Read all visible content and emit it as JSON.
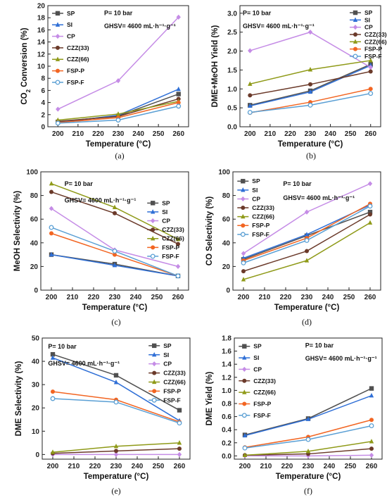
{
  "chart_data": [
    {
      "type": "line",
      "panel_label": "(a)",
      "xlabel": "Temperature (°C)",
      "ylabel_main": "CO",
      "ylabel_sub": "2",
      "ylabel_rest": " Conversion (%)",
      "x": [
        200,
        230,
        260
      ],
      "xlim": [
        195,
        265
      ],
      "xticks": [
        200,
        210,
        220,
        230,
        240,
        250,
        260
      ],
      "ylim": [
        0,
        20
      ],
      "yticks": [
        0,
        2,
        4,
        6,
        8,
        10,
        12,
        14,
        16,
        18,
        20
      ],
      "annotations": [
        {
          "text": "P= 10 bar"
        },
        {
          "text": "GHSV= 4600 mL·h⁻¹·g⁻¹"
        }
      ],
      "legend": "top-left",
      "series": [
        {
          "name": "SP",
          "values": [
            0.8,
            1.8,
            5.4
          ]
        },
        {
          "name": "SI",
          "values": [
            0.7,
            1.9,
            6.2
          ]
        },
        {
          "name": "CP",
          "values": [
            2.9,
            7.6,
            18.1
          ]
        },
        {
          "name": "CZZ(33)",
          "values": [
            0.9,
            1.7,
            4.6
          ]
        },
        {
          "name": "CZZ(66)",
          "values": [
            1.1,
            2.1,
            4.2
          ]
        },
        {
          "name": "FSP-P",
          "values": [
            0.7,
            1.5,
            4.0
          ]
        },
        {
          "name": "FSP-F",
          "values": [
            0.6,
            1.1,
            3.4
          ]
        }
      ]
    },
    {
      "type": "line",
      "panel_label": "(b)",
      "xlabel": "Temperature (°C)",
      "ylabel": "DME+MeOH Yield (%)",
      "x": [
        200,
        230,
        260
      ],
      "xlim": [
        195,
        265
      ],
      "xticks": [
        200,
        210,
        220,
        230,
        240,
        250,
        260
      ],
      "ylim": [
        0,
        3.2
      ],
      "yticks": [
        0.0,
        0.5,
        1.0,
        1.5,
        2.0,
        2.5,
        3.0
      ],
      "annotations": [
        {
          "text": "P= 10 bar"
        },
        {
          "text": "GHSV= 4600 mL·h⁻¹·g⁻¹"
        }
      ],
      "legend": "top-right",
      "series": [
        {
          "name": "SP",
          "values": [
            0.57,
            0.95,
            1.65
          ]
        },
        {
          "name": "SI",
          "values": [
            0.55,
            0.92,
            1.62
          ]
        },
        {
          "name": "CP",
          "values": [
            2.01,
            2.5,
            1.57
          ]
        },
        {
          "name": "CZZ(33)",
          "values": [
            0.83,
            1.12,
            1.46
          ]
        },
        {
          "name": "CZZ(66)",
          "values": [
            1.13,
            1.51,
            1.75
          ]
        },
        {
          "name": "FSP-P",
          "values": [
            0.37,
            0.65,
            1.0
          ]
        },
        {
          "name": "FSP-F",
          "values": [
            0.38,
            0.57,
            0.88
          ]
        }
      ]
    },
    {
      "type": "line",
      "panel_label": "(c)",
      "xlabel": "Temperature (°C)",
      "ylabel": "MeOH Selectivity (%)",
      "x": [
        200,
        230,
        260
      ],
      "xlim": [
        195,
        265
      ],
      "xticks": [
        200,
        210,
        220,
        230,
        240,
        250,
        260
      ],
      "ylim": [
        0,
        100
      ],
      "yticks": [
        0,
        20,
        40,
        60,
        80,
        100
      ],
      "annotations": [
        {
          "text": "P= 10 bar"
        },
        {
          "text": "GHSV= 4600 mL·h⁻¹·g⁻¹"
        }
      ],
      "legend": "right",
      "series": [
        {
          "name": "SP",
          "values": [
            30,
            22,
            12
          ]
        },
        {
          "name": "SI",
          "values": [
            30,
            21,
            12
          ]
        },
        {
          "name": "CP",
          "values": [
            69,
            34,
            20
          ]
        },
        {
          "name": "CZZ(33)",
          "values": [
            83,
            65,
            39
          ]
        },
        {
          "name": "CZZ(66)",
          "values": [
            90,
            70,
            43
          ]
        },
        {
          "name": "FSP-P",
          "values": [
            48,
            30,
            12
          ]
        },
        {
          "name": "FSP-F",
          "values": [
            53,
            33,
            12
          ]
        }
      ]
    },
    {
      "type": "line",
      "panel_label": "(d)",
      "xlabel": "Temperature (°C)",
      "ylabel": "CO Selectivity (%)",
      "x": [
        200,
        230,
        260
      ],
      "xlim": [
        195,
        265
      ],
      "xticks": [
        200,
        210,
        220,
        230,
        240,
        250,
        260
      ],
      "ylim": [
        0,
        100
      ],
      "yticks": [
        0,
        20,
        40,
        60,
        80,
        100
      ],
      "annotations": [
        {
          "text": "P= 10 bar"
        },
        {
          "text": "GHSV= 4600 mL·h⁻¹·g⁻¹"
        }
      ],
      "legend": "top-left",
      "series": [
        {
          "name": "SP",
          "values": [
            26,
            46,
            66
          ]
        },
        {
          "name": "SI",
          "values": [
            27,
            47,
            72
          ]
        },
        {
          "name": "CP",
          "values": [
            31,
            66,
            90
          ]
        },
        {
          "name": "CZZ(33)",
          "values": [
            16,
            33,
            64
          ]
        },
        {
          "name": "CZZ(66)",
          "values": [
            9,
            25,
            57
          ]
        },
        {
          "name": "FSP-P",
          "values": [
            25,
            44,
            73
          ]
        },
        {
          "name": "FSP-F",
          "values": [
            23,
            42,
            71
          ]
        }
      ]
    },
    {
      "type": "line",
      "panel_label": "(e)",
      "xlabel": "Temperature (°C)",
      "ylabel": "DME Selectivity (%)",
      "x": [
        200,
        230,
        260
      ],
      "xlim": [
        195,
        265
      ],
      "xticks": [
        200,
        210,
        220,
        230,
        240,
        250,
        260
      ],
      "ylim": [
        -2,
        50
      ],
      "yticks": [
        0,
        10,
        20,
        30,
        40,
        50
      ],
      "annotations": [
        {
          "text": "P= 10 bar"
        },
        {
          "text": "GHSV= 4600 mL·h⁻¹·g⁻¹"
        }
      ],
      "legend": "right",
      "series": [
        {
          "name": "SP",
          "values": [
            43,
            34,
            19
          ]
        },
        {
          "name": "SI",
          "values": [
            41.5,
            31,
            14.5
          ]
        },
        {
          "name": "CP",
          "values": [
            0,
            0,
            0
          ]
        },
        {
          "name": "CZZ(33)",
          "values": [
            0.5,
            1.5,
            2.5
          ]
        },
        {
          "name": "CZZ(66)",
          "values": [
            1,
            3.5,
            5
          ]
        },
        {
          "name": "FSP-P",
          "values": [
            27,
            23.5,
            14
          ]
        },
        {
          "name": "FSP-F",
          "values": [
            24,
            22.5,
            13.5
          ]
        }
      ]
    },
    {
      "type": "line",
      "panel_label": "(f)",
      "xlabel": "Temperature (°C)",
      "ylabel": "DME Yield (%)",
      "x": [
        200,
        230,
        260
      ],
      "xlim": [
        195,
        265
      ],
      "xticks": [
        200,
        210,
        220,
        230,
        240,
        250,
        260
      ],
      "ylim": [
        -0.05,
        1.8
      ],
      "yticks": [
        0.0,
        0.2,
        0.4,
        0.6,
        0.8,
        1.0,
        1.2,
        1.4,
        1.6,
        1.8
      ],
      "annotations": [
        {
          "text": "P= 10 bar"
        },
        {
          "text": "GHSV= 4600 mL·h⁻¹·g⁻¹"
        }
      ],
      "legend": "top-left",
      "series": [
        {
          "name": "SP",
          "values": [
            0.32,
            0.57,
            1.03
          ]
        },
        {
          "name": "SI",
          "values": [
            0.31,
            0.56,
            0.92
          ]
        },
        {
          "name": "CP",
          "values": [
            0.0,
            0.0,
            0.01
          ]
        },
        {
          "name": "CZZ(33)",
          "values": [
            0.01,
            0.03,
            0.11
          ]
        },
        {
          "name": "CZZ(66)",
          "values": [
            0.01,
            0.07,
            0.22
          ]
        },
        {
          "name": "FSP-P",
          "values": [
            0.13,
            0.29,
            0.55
          ]
        },
        {
          "name": "FSP-F",
          "values": [
            0.12,
            0.25,
            0.46
          ]
        }
      ]
    }
  ],
  "series_colors": {
    "SP": "#505050",
    "SI": "#2f6fd6",
    "CP": "#c58ce6",
    "CZZ(33)": "#6b3a2a",
    "CZZ(66)": "#8f9a18",
    "FSP-P": "#f26522",
    "FSP-F": "#5a9fd4"
  },
  "series_markers": {
    "SP": "square",
    "SI": "triangle",
    "CP": "diamond",
    "CZZ(33)": "circle",
    "CZZ(66)": "triangle",
    "FSP-P": "circle",
    "FSP-F": "circle-open"
  }
}
